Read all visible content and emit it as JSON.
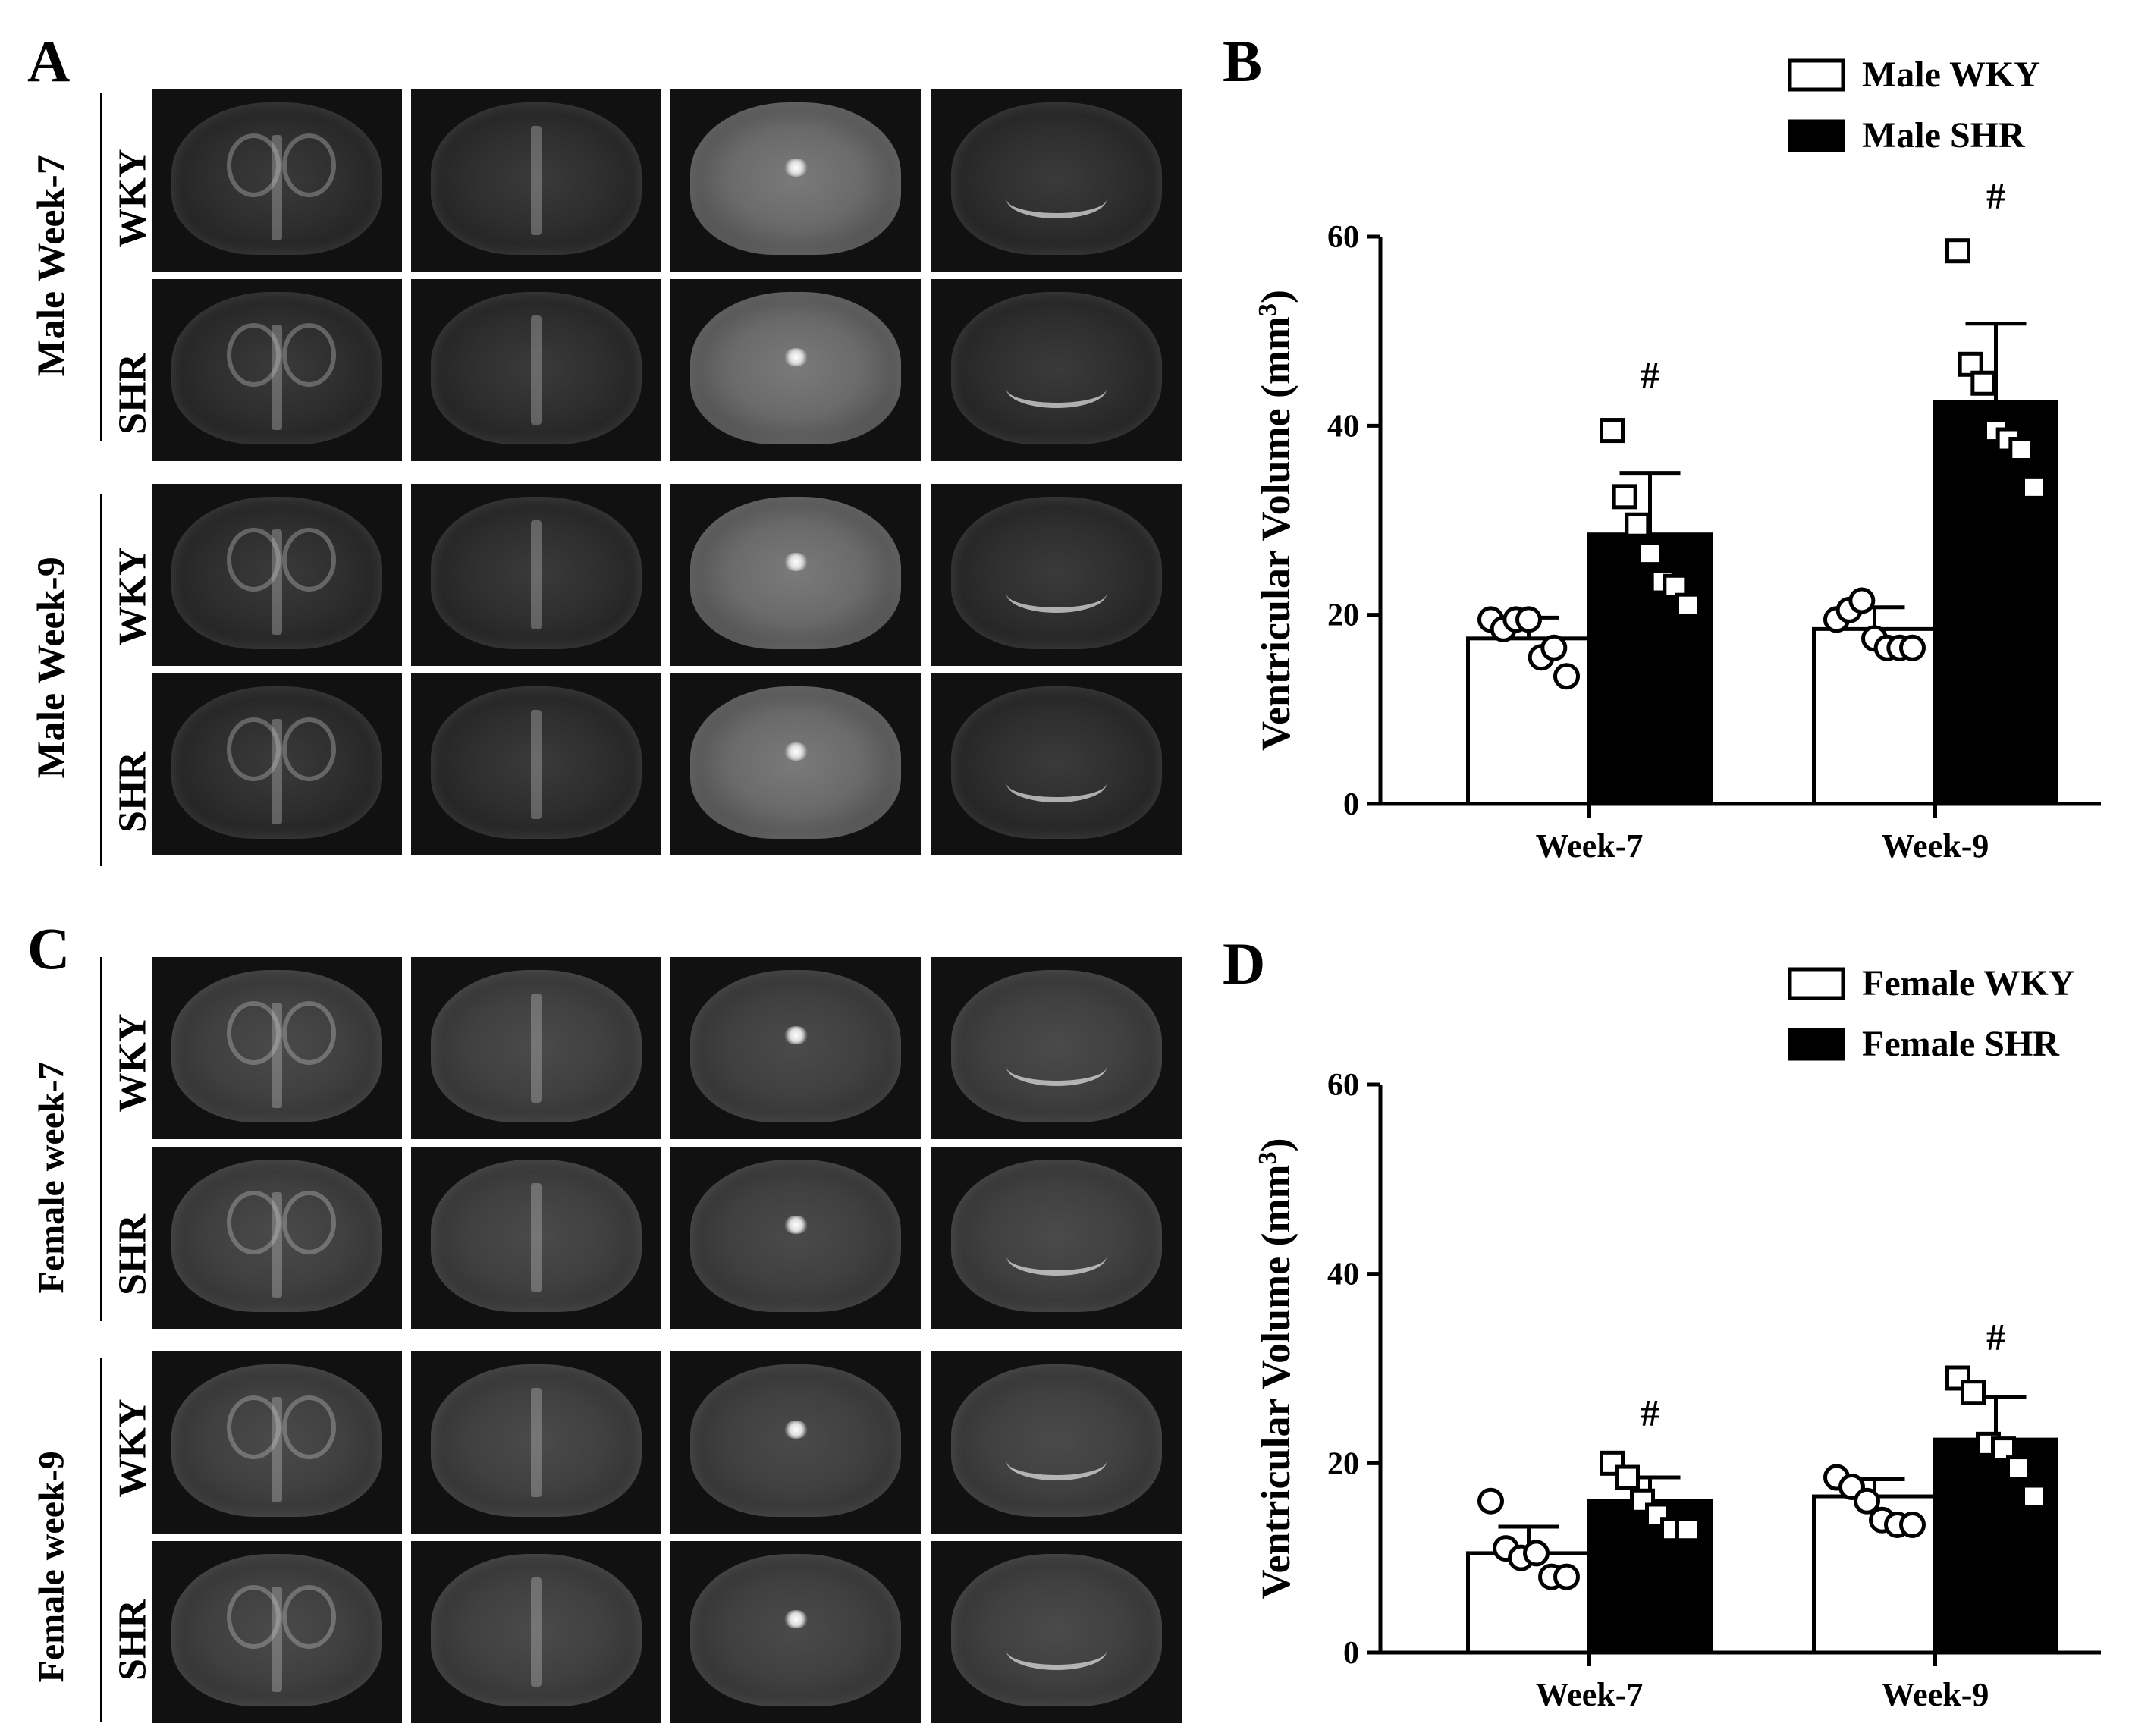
{
  "panels": {
    "a": {
      "letter": "A"
    },
    "b": {
      "letter": "B"
    },
    "c": {
      "letter": "C"
    },
    "d": {
      "letter": "D"
    }
  },
  "mri_groups": {
    "top": {
      "outer": [
        "Male Week-7",
        "Male Week-9"
      ],
      "inner": [
        "WKY",
        "SHR",
        "WKY",
        "SHR"
      ]
    },
    "bottom": {
      "outer": [
        "Female week-7",
        "Female week-9"
      ],
      "inner": [
        "WKY",
        "SHR",
        "WKY",
        "SHR"
      ]
    }
  },
  "chart_data": [
    {
      "type": "bar",
      "panel": "B",
      "categories": [
        "Week-7",
        "Week-9"
      ],
      "ylabel": "Ventricular Volume (mm3)",
      "ylabel_main": "Ventricular Volume (mm",
      "ylabel_sup": "3",
      "ylabel_end": ")",
      "ylim": [
        0,
        60
      ],
      "yticks": [
        0,
        20,
        40,
        60
      ],
      "legend_position": "top-right",
      "series": [
        {
          "name": "Male WKY",
          "fill": "#ffffff",
          "marker": "circle",
          "values": [
            17.5,
            18.5
          ],
          "errors": [
            2.2,
            2.3
          ],
          "points": [
            [
              19.5,
              18.5,
              19.5,
              19.5,
              15.5,
              16.5,
              13.5
            ],
            [
              19.5,
              20.5,
              21.5,
              17.5,
              16.5,
              16.5,
              16.5
            ]
          ]
        },
        {
          "name": "Male SHR",
          "fill": "#000000",
          "marker": "square",
          "values": [
            28.5,
            42.5
          ],
          "errors": [
            6.5,
            8.3
          ],
          "points": [
            [
              39.5,
              32.5,
              29.5,
              26.5,
              23.5,
              23.0,
              21.0
            ],
            [
              58.5,
              46.5,
              44.5,
              39.5,
              38.5,
              37.5,
              33.5
            ]
          ]
        }
      ],
      "annotations": [
        {
          "category": "Week-7",
          "text": "#",
          "y": 44
        },
        {
          "category": "Week-9",
          "text": "#",
          "y": 63
        }
      ]
    },
    {
      "type": "bar",
      "panel": "D",
      "categories": [
        "Week-7",
        "Week-9"
      ],
      "ylabel": "Ventricular Volume (mm3)",
      "ylabel_main": "Ventricular Volume (mm",
      "ylabel_sup": "3",
      "ylabel_end": ")",
      "ylim": [
        0,
        60
      ],
      "yticks": [
        0,
        20,
        40,
        60
      ],
      "legend_position": "top-right",
      "series": [
        {
          "name": "Female WKY",
          "fill": "#ffffff",
          "marker": "circle",
          "values": [
            10.5,
            16.5
          ],
          "errors": [
            2.8,
            1.8
          ],
          "points": [
            [
              16.0,
              11.0,
              10.0,
              10.5,
              8.0,
              8.0
            ],
            [
              18.5,
              17.5,
              16.0,
              14.0,
              13.5,
              13.5
            ]
          ]
        },
        {
          "name": "Female SHR",
          "fill": "#000000",
          "marker": "square",
          "values": [
            16.0,
            22.5
          ],
          "errors": [
            2.5,
            4.5
          ],
          "points": [
            [
              20.0,
              18.5,
              16.0,
              14.5,
              13.0,
              13.0
            ],
            [
              29.0,
              27.5,
              22.0,
              21.5,
              19.5,
              16.5
            ]
          ]
        }
      ],
      "annotations": [
        {
          "category": "Week-7",
          "text": "#",
          "y": 24
        },
        {
          "category": "Week-9",
          "text": "#",
          "y": 32
        }
      ]
    }
  ]
}
